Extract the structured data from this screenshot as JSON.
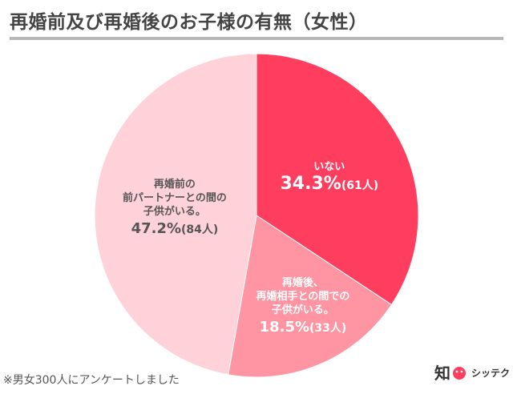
{
  "title": "再婚前及び再婚後のお子様の有無（女性）",
  "note": "※男女300人にアンケートしました",
  "logo": {
    "mark": "知",
    "text": "シッテク"
  },
  "colors": {
    "title_rule": "#b8b8b8",
    "title_text": "#444444"
  },
  "chart_data": {
    "type": "pie",
    "title": "再婚前及び再婚後のお子様の有無（女性）",
    "start": "12 o'clock",
    "direction": "clockwise",
    "slices": [
      {
        "label": "いない",
        "label_lines": [
          "いない"
        ],
        "percent": 34.3,
        "percent_text": "34.3%",
        "count_text": "(61人)",
        "count": 61,
        "color": "#ff3d5e",
        "text_color": "#ffffff"
      },
      {
        "label": "再婚後、再婚相手との間での子供がいる。",
        "label_lines": [
          "再婚後、",
          "再婚相手との間での",
          "子供がいる。"
        ],
        "percent": 18.5,
        "percent_text": "18.5%",
        "count_text": "(33人)",
        "count": 33,
        "color": "#ff94a2",
        "text_color": "#ffffff"
      },
      {
        "label": "再婚前の前パートナーとの間の子供がいる。",
        "label_lines": [
          "再婚前の",
          "前パートナーとの間の",
          "子供がいる。"
        ],
        "percent": 47.2,
        "percent_text": "47.2%",
        "count_text": "(84人)",
        "count": 84,
        "color": "#ffd2d9",
        "text_color": "#555555"
      }
    ]
  }
}
